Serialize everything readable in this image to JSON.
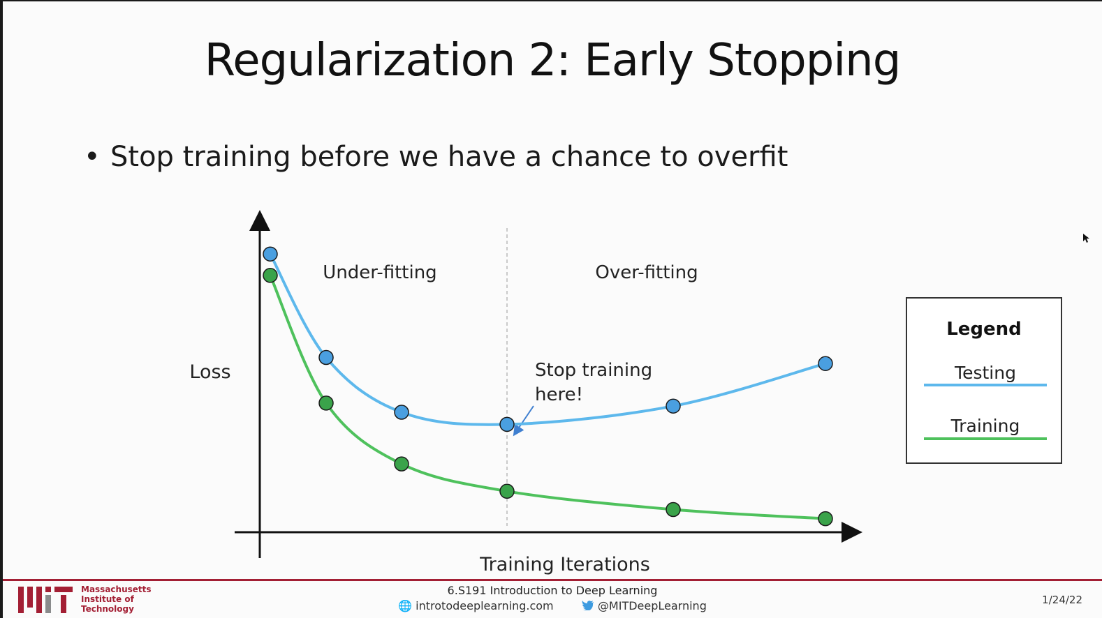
{
  "slide": {
    "title": "Regularization 2: Early Stopping",
    "bullet": "Stop training before we have a chance to overfit"
  },
  "chart_data": {
    "type": "line",
    "xlabel": "Training Iterations",
    "ylabel": "Loss",
    "regions": [
      "Under-fitting",
      "Over-fitting"
    ],
    "annotation": [
      "Stop training",
      "here!"
    ],
    "stop_index": 3,
    "legend": {
      "title": "Legend",
      "placement": "right",
      "entries": [
        "Testing",
        "Training"
      ]
    },
    "x": [
      1,
      2,
      3,
      4,
      5,
      6
    ],
    "series": [
      {
        "name": "Testing",
        "color": "#5db8ec",
        "marker": "#4a9fe0",
        "values": [
          0.91,
          0.57,
          0.39,
          0.35,
          0.41,
          0.55
        ]
      },
      {
        "name": "Training",
        "color": "#4ec15c",
        "marker": "#3aa34a",
        "values": [
          0.84,
          0.42,
          0.22,
          0.13,
          0.07,
          0.04
        ]
      }
    ],
    "grid": false
  },
  "footer": {
    "institution": [
      "Massachusetts",
      "Institute of",
      "Technology"
    ],
    "course": "6.S191 Introduction to Deep Learning",
    "website": "introtodeeplearning.com",
    "twitter": "@MITDeepLearning",
    "date": "1/24/22",
    "accent": "#a31f34"
  }
}
